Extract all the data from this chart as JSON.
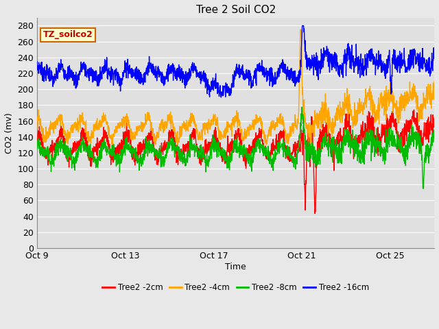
{
  "title": "Tree 2 Soil CO2",
  "xlabel": "Time",
  "ylabel": "CO2 (mv)",
  "ylim": [
    0,
    290
  ],
  "yticks": [
    0,
    20,
    40,
    60,
    80,
    100,
    120,
    140,
    160,
    180,
    200,
    220,
    240,
    260,
    280
  ],
  "xtick_labels": [
    "Oct 9",
    "Oct 13",
    "Oct 17",
    "Oct 21",
    "Oct 25"
  ],
  "xtick_pos": [
    0,
    4,
    8,
    12,
    16
  ],
  "xlim": [
    0,
    18
  ],
  "fig_bg_color": "#e8e8e8",
  "plot_bg_color": "#e0e0e0",
  "grid_color": "#ffffff",
  "legend_label": "TZ_soilco2",
  "legend_box_facecolor": "#ffffcc",
  "legend_box_edgecolor": "#cc6600",
  "legend_text_color": "#cc0000",
  "series_labels": [
    "Tree2 -2cm",
    "Tree2 -4cm",
    "Tree2 -8cm",
    "Tree2 -16cm"
  ],
  "series_colors": [
    "#ff0000",
    "#ffa500",
    "#00bb00",
    "#0000ff"
  ],
  "line_width": 1.0,
  "title_fontsize": 11,
  "axis_label_fontsize": 9,
  "tick_fontsize": 9
}
